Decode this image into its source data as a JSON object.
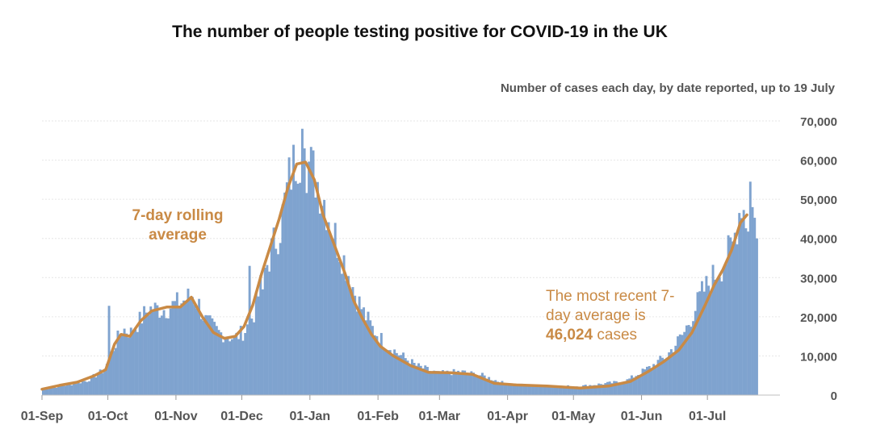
{
  "chart_data": {
    "type": "bar",
    "title": "The number of people testing positive for COVID-19 in the UK",
    "subtitle": "Number of cases each day, by date reported, up to 19 July",
    "xlabel": "",
    "ylabel": "",
    "ylim": [
      0,
      70000
    ],
    "yticks": [
      0,
      10000,
      20000,
      30000,
      40000,
      50000,
      60000,
      70000
    ],
    "ytick_labels": [
      "0",
      "10,000",
      "20,000",
      "30,000",
      "40,000",
      "50,000",
      "60,000",
      "70,000"
    ],
    "x_start": "2020-09-01",
    "x_end": "2021-07-19",
    "xtick_days": [
      0,
      30,
      61,
      91,
      122,
      153,
      181,
      212,
      242,
      273,
      303
    ],
    "xtick_labels": [
      "01-Sep",
      "01-Oct",
      "01-Nov",
      "01-Dec",
      "01-Jan",
      "01-Feb",
      "01-Mar",
      "01-Apr",
      "01-May",
      "01-Jun",
      "01-Jul"
    ],
    "series": [
      {
        "name": "Daily cases",
        "kind": "bar",
        "color": "#7fa3cf",
        "anchor_days": [
          0,
          10,
          20,
          28,
          32,
          36,
          40,
          44,
          48,
          55,
          62,
          68,
          71,
          74,
          80,
          87,
          92,
          96,
          100,
          104,
          108,
          112,
          116,
          121,
          124,
          128,
          131,
          134,
          138,
          142,
          146,
          150,
          156,
          162,
          170,
          180,
          190,
          200,
          210,
          220,
          232,
          245,
          265,
          276,
          284,
          292,
          300,
          305,
          310,
          314,
          316,
          318,
          320
        ],
        "anchor_values": [
          1500,
          2500,
          3700,
          6500,
          12000,
          17000,
          16000,
          19000,
          22000,
          22000,
          23500,
          25500,
          23000,
          19000,
          16000,
          14500,
          16500,
          21000,
          30000,
          37000,
          43000,
          55000,
          62000,
          59000,
          56000,
          50000,
          44000,
          39000,
          33000,
          26000,
          21000,
          17000,
          13000,
          10500,
          7500,
          5500,
          6000,
          5000,
          3000,
          2500,
          2200,
          2300,
          3500,
          7000,
          10000,
          16000,
          26000,
          30000,
          34000,
          38000,
          44000,
          50000,
          45000
        ],
        "highlights": [
          [
            30,
            22800
          ],
          [
            94,
            33000
          ],
          [
            100,
            27000
          ],
          [
            118,
            68000
          ],
          [
            119,
            63000
          ],
          [
            322,
            54500
          ],
          [
            323,
            48000
          ],
          [
            325,
            40000
          ]
        ]
      },
      {
        "name": "7-day rolling average",
        "kind": "line",
        "color": "#c98a45",
        "days": [
          0,
          8,
          16,
          24,
          29,
          33,
          36,
          40,
          45,
          50,
          57,
          63,
          68,
          73,
          78,
          83,
          88,
          92,
          96,
          100,
          104,
          108,
          112,
          116,
          120,
          124,
          128,
          133,
          138,
          142,
          146,
          150,
          154,
          160,
          168,
          176,
          186,
          196,
          206,
          216,
          230,
          245,
          258,
          268,
          276,
          283,
          290,
          296,
          302,
          306,
          310,
          314,
          318,
          321
        ],
        "values": [
          1500,
          2500,
          3300,
          5000,
          6500,
          13000,
          15500,
          15000,
          19000,
          21500,
          22500,
          22500,
          25000,
          20000,
          16000,
          14500,
          15000,
          17500,
          23000,
          31000,
          38000,
          45000,
          53000,
          59000,
          59500,
          55000,
          46000,
          38500,
          31000,
          24000,
          19500,
          15500,
          12500,
          10000,
          7500,
          5800,
          5700,
          5300,
          3000,
          2600,
          2300,
          1800,
          2300,
          3500,
          6000,
          8500,
          11500,
          16000,
          23000,
          28000,
          32000,
          37000,
          44000,
          46024
        ]
      }
    ],
    "annotations": {
      "rolling_label": [
        "7-day rolling",
        "average"
      ],
      "recent_line1": "The most recent 7-",
      "recent_line2": "day average is",
      "recent_value": "46,024",
      "recent_suffix": " cases"
    }
  }
}
